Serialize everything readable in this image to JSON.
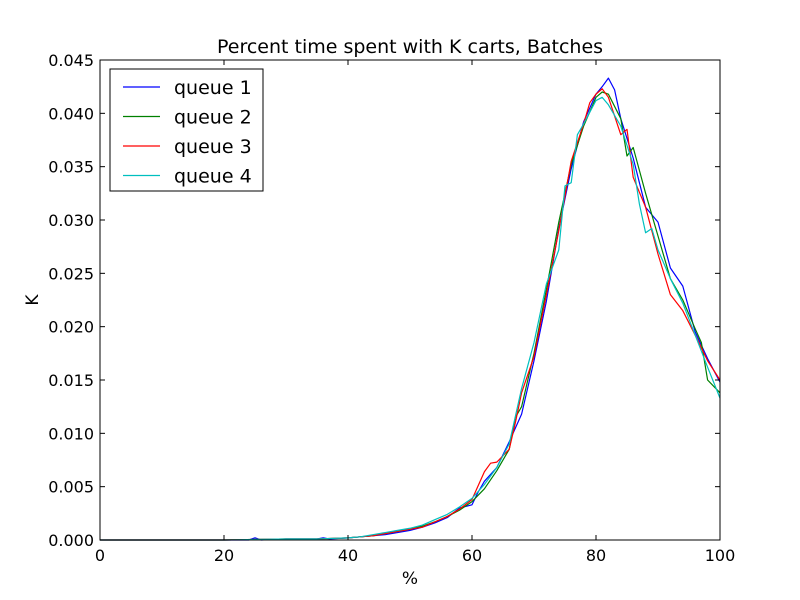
{
  "chart_data": {
    "type": "line",
    "title": "Percent time spent with K carts, Batches",
    "xlabel": "%",
    "ylabel": "K",
    "xlim": [
      0,
      100
    ],
    "ylim": [
      0,
      0.045
    ],
    "x_ticks": [
      0,
      20,
      40,
      60,
      80,
      100
    ],
    "y_ticks": [
      0.0,
      0.005,
      0.01,
      0.015,
      0.02,
      0.025,
      0.03,
      0.035,
      0.04,
      0.045
    ],
    "x_tick_labels": [
      "0",
      "20",
      "40",
      "60",
      "80",
      "100"
    ],
    "y_tick_labels": [
      "0.000",
      "0.005",
      "0.010",
      "0.015",
      "0.020",
      "0.025",
      "0.030",
      "0.035",
      "0.040",
      "0.045"
    ],
    "grid": false,
    "legend_position": "top-left",
    "series": [
      {
        "name": "queue 1",
        "color": "#0000ff",
        "x": [
          0,
          20,
          24,
          25,
          26,
          30,
          35,
          36,
          37,
          40,
          42,
          44,
          46,
          48,
          50,
          52,
          54,
          56,
          58,
          60,
          61,
          62,
          64,
          66,
          68,
          70,
          72,
          74,
          76,
          78,
          80,
          81,
          82,
          83,
          84,
          86,
          88,
          90,
          92,
          94,
          96,
          98,
          100
        ],
        "y": [
          0,
          0,
          0,
          0.0002,
          0,
          0.0001,
          0.0001,
          0.0002,
          0.0001,
          0.0002,
          0.0003,
          0.0004,
          0.0005,
          0.0007,
          0.0009,
          0.0012,
          0.0016,
          0.0021,
          0.003,
          0.0033,
          0.0045,
          0.0055,
          0.0068,
          0.0092,
          0.0118,
          0.0168,
          0.0224,
          0.0292,
          0.0348,
          0.0392,
          0.0418,
          0.0425,
          0.0433,
          0.0422,
          0.0395,
          0.0358,
          0.0312,
          0.0298,
          0.0255,
          0.0238,
          0.0195,
          0.017,
          0.0148
        ]
      },
      {
        "name": "queue 2",
        "color": "#008000",
        "x": [
          0,
          20,
          30,
          35,
          40,
          42,
          44,
          46,
          48,
          50,
          52,
          54,
          56,
          58,
          60,
          62,
          64,
          66,
          67,
          68,
          70,
          72,
          74,
          76,
          78,
          80,
          81,
          82,
          84,
          85,
          86,
          88,
          90,
          92,
          94,
          96,
          97,
          98,
          100
        ],
        "y": [
          0,
          0,
          0.0001,
          0.0001,
          0.0002,
          0.0003,
          0.0004,
          0.0006,
          0.0008,
          0.001,
          0.0013,
          0.0017,
          0.0022,
          0.0028,
          0.0036,
          0.0048,
          0.0065,
          0.0085,
          0.0115,
          0.0125,
          0.0175,
          0.0235,
          0.0298,
          0.0352,
          0.0388,
          0.0415,
          0.042,
          0.0418,
          0.0395,
          0.036,
          0.0368,
          0.0325,
          0.0285,
          0.0245,
          0.0225,
          0.0198,
          0.0185,
          0.015,
          0.0138
        ]
      },
      {
        "name": "queue 3",
        "color": "#ff0000",
        "x": [
          0,
          20,
          30,
          35,
          40,
          42,
          44,
          46,
          48,
          50,
          52,
          54,
          56,
          58,
          60,
          62,
          63,
          64,
          66,
          67,
          68,
          70,
          72,
          74,
          76,
          78,
          79,
          80,
          81,
          82,
          84,
          85,
          86,
          88,
          90,
          92,
          94,
          96,
          98,
          100
        ],
        "y": [
          0,
          0,
          0.0001,
          0.0001,
          0.0002,
          0.0003,
          0.0004,
          0.0006,
          0.0008,
          0.001,
          0.0012,
          0.0017,
          0.0022,
          0.0029,
          0.0038,
          0.0064,
          0.0072,
          0.0073,
          0.0085,
          0.011,
          0.0138,
          0.0172,
          0.023,
          0.029,
          0.0355,
          0.039,
          0.041,
          0.0418,
          0.0423,
          0.0415,
          0.038,
          0.0385,
          0.034,
          0.0312,
          0.0268,
          0.023,
          0.0215,
          0.0192,
          0.0168,
          0.015
        ]
      },
      {
        "name": "queue 4",
        "color": "#00bfbf",
        "x": [
          0,
          20,
          30,
          35,
          40,
          42,
          44,
          46,
          48,
          50,
          52,
          54,
          56,
          58,
          60,
          62,
          64,
          66,
          68,
          70,
          72,
          74,
          75,
          76,
          77,
          78,
          80,
          81,
          82,
          84,
          86,
          87,
          88,
          89,
          90,
          92,
          94,
          96,
          98,
          100
        ],
        "y": [
          0,
          0,
          0.0001,
          0.0001,
          0.0002,
          0.0003,
          0.0005,
          0.0007,
          0.0009,
          0.0011,
          0.0014,
          0.0019,
          0.0024,
          0.0031,
          0.0039,
          0.0052,
          0.0068,
          0.009,
          0.0142,
          0.0185,
          0.024,
          0.0272,
          0.0332,
          0.0335,
          0.038,
          0.039,
          0.0412,
          0.0415,
          0.0408,
          0.0388,
          0.0352,
          0.0315,
          0.0288,
          0.0292,
          0.0272,
          0.0245,
          0.0222,
          0.0192,
          0.0162,
          0.0133
        ]
      }
    ]
  }
}
